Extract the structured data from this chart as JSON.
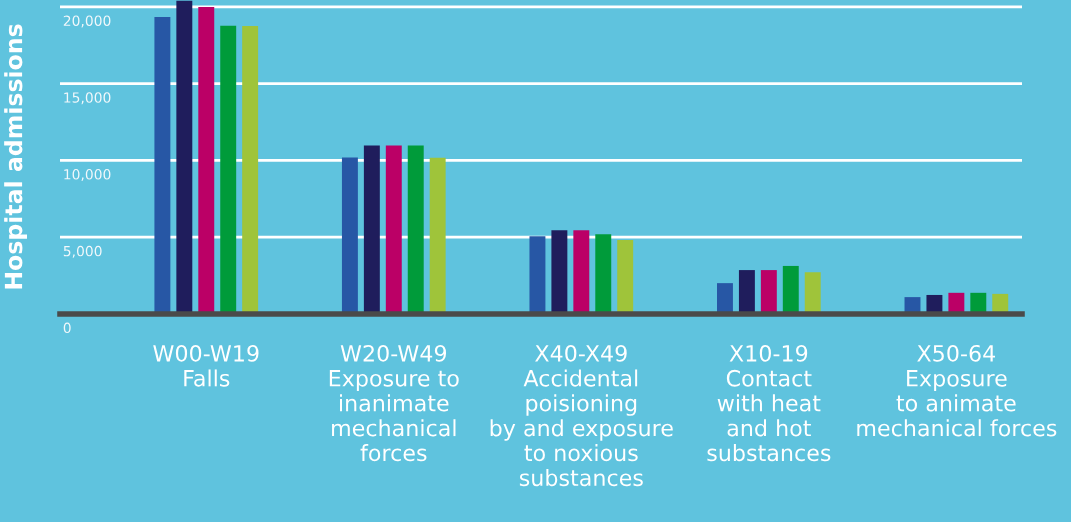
{
  "chart_data": {
    "type": "bar",
    "ylabel": "Hospital admissions",
    "categories": [
      "W00-W19\nFalls",
      "W20-W49\nExposure to\ninanimate\nmechanical\nforces",
      "X40-X49\nAccidental\npoisioning\nby and exposure\nto noxious\nsubstances",
      "X10-19\nContact\nwith heat\nand hot\nsubstances",
      "X50-64\nExposure\nto animate\nmechanical forces"
    ],
    "series": [
      {
        "color": "#2757a5",
        "values": [
          19350,
          10200,
          5070,
          2010,
          1100
        ]
      },
      {
        "color": "#1f1d5c",
        "values": [
          20400,
          10970,
          5450,
          2860,
          1240
        ]
      },
      {
        "color": "#bb0066",
        "values": [
          20000,
          10970,
          5450,
          2860,
          1380
        ]
      },
      {
        "color": "#009b3a",
        "values": [
          18770,
          10970,
          5200,
          3130,
          1380
        ]
      },
      {
        "color": "#9fc43a",
        "values": [
          18750,
          10180,
          4820,
          2720,
          1310
        ]
      }
    ],
    "ylim": [
      0,
      20450
    ],
    "yticks": [
      {
        "value": 0,
        "label": "0"
      },
      {
        "value": 5000,
        "label": "5,000"
      },
      {
        "value": 10000,
        "label": "10,000"
      },
      {
        "value": 15000,
        "label": "15,000"
      },
      {
        "value": 20000,
        "label": "20,000"
      }
    ],
    "grid": "y"
  }
}
